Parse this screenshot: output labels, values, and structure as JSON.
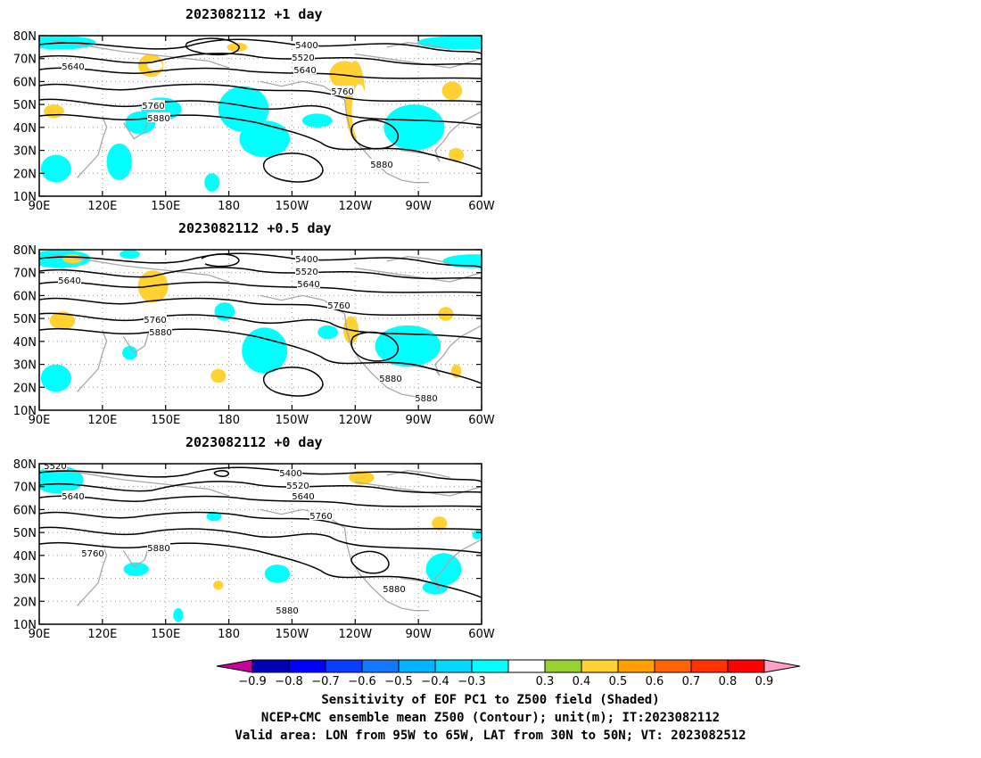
{
  "panels": [
    {
      "title": "2023082112 +1 day",
      "contour_labels": [
        "5400",
        "5520",
        "5640",
        "5640",
        "5760",
        "5760",
        "5880",
        "5880"
      ],
      "shading": [
        {
          "lon": 100,
          "lat": 77,
          "rx": 14,
          "ry": 3,
          "value": -0.3
        },
        {
          "lon": 143,
          "lat": 67,
          "rx": 5,
          "ry": 5,
          "value": 0.4
        },
        {
          "lon": 145,
          "lat": 67,
          "rx": 3,
          "ry": 2,
          "value": 0.5
        },
        {
          "lon": 184,
          "lat": 75,
          "rx": 4,
          "ry": 2,
          "value": 0.4
        },
        {
          "lon": 97,
          "lat": 47,
          "rx": 4,
          "ry": 3,
          "value": 0.4
        },
        {
          "lon": 138,
          "lat": 42,
          "rx": 6,
          "ry": 5,
          "value": -0.3
        },
        {
          "lon": 148,
          "lat": 48,
          "rx": 8,
          "ry": 5,
          "value": -0.3
        },
        {
          "lon": 98,
          "lat": 22,
          "rx": 6,
          "ry": 6,
          "value": -0.3
        },
        {
          "lon": 128,
          "lat": 25,
          "rx": 5,
          "ry": 8,
          "value": -0.3
        },
        {
          "lon": 187,
          "lat": 48,
          "rx": 10,
          "ry": 10,
          "value": -0.3
        },
        {
          "lon": 197,
          "lat": 35,
          "rx": 10,
          "ry": 8,
          "value": -0.3
        },
        {
          "lon": 172,
          "lat": 16,
          "rx": 3,
          "ry": 4,
          "value": -0.3
        },
        {
          "lon": 222,
          "lat": 43,
          "rx": 6,
          "ry": 3,
          "value": -0.3
        },
        {
          "lon": 240,
          "lat": 52,
          "rx": 4,
          "ry": 17,
          "value": 0.4
        },
        {
          "lon": 235,
          "lat": 63,
          "rx": 6,
          "ry": 6,
          "value": 0.4
        },
        {
          "lon": 242,
          "lat": 47,
          "rx": 3,
          "ry": 12,
          "value": 0.5
        },
        {
          "lon": 268,
          "lat": 40,
          "rx": 12,
          "ry": 10,
          "value": -0.3
        },
        {
          "lon": 286,
          "lat": 56,
          "rx": 4,
          "ry": 4,
          "value": 0.4
        },
        {
          "lon": 288,
          "lat": 28,
          "rx": 3,
          "ry": 3,
          "value": 0.4
        },
        {
          "lon": 291,
          "lat": 77,
          "rx": 18,
          "ry": 3,
          "value": -0.3
        }
      ]
    },
    {
      "title": "2023082112 +0.5 day",
      "contour_labels": [
        "5400",
        "5520",
        "5640",
        "5640",
        "5760",
        "5760",
        "5880",
        "5880",
        "5880"
      ],
      "shading": [
        {
          "lon": 100,
          "lat": 76,
          "rx": 12,
          "ry": 4,
          "value": -0.3
        },
        {
          "lon": 133,
          "lat": 78,
          "rx": 4,
          "ry": 2,
          "value": -0.3
        },
        {
          "lon": 144,
          "lat": 64,
          "rx": 6,
          "ry": 7,
          "value": 0.4
        },
        {
          "lon": 106,
          "lat": 76,
          "rx": 4,
          "ry": 2,
          "value": 0.4
        },
        {
          "lon": 101,
          "lat": 49,
          "rx": 5,
          "ry": 4,
          "value": 0.4
        },
        {
          "lon": 133,
          "lat": 35,
          "rx": 3,
          "ry": 3,
          "value": -0.3
        },
        {
          "lon": 98,
          "lat": 24,
          "rx": 6,
          "ry": 6,
          "value": -0.3
        },
        {
          "lon": 175,
          "lat": 25,
          "rx": 3,
          "ry": 3,
          "value": 0.4
        },
        {
          "lon": 178,
          "lat": 53,
          "rx": 4,
          "ry": 4,
          "value": -0.3
        },
        {
          "lon": 197,
          "lat": 36,
          "rx": 9,
          "ry": 10,
          "value": -0.3
        },
        {
          "lon": 227,
          "lat": 44,
          "rx": 4,
          "ry": 3,
          "value": -0.3
        },
        {
          "lon": 238,
          "lat": 45,
          "rx": 3,
          "ry": 6,
          "value": 0.4
        },
        {
          "lon": 265,
          "lat": 38,
          "rx": 13,
          "ry": 9,
          "value": -0.3
        },
        {
          "lon": 283,
          "lat": 52,
          "rx": 3,
          "ry": 3,
          "value": 0.4
        },
        {
          "lon": 288,
          "lat": 27,
          "rx": 2,
          "ry": 3,
          "value": 0.4
        },
        {
          "lon": 296,
          "lat": 75,
          "rx": 12,
          "ry": 3,
          "value": -0.3
        }
      ]
    },
    {
      "title": "2023082112 +0 day",
      "contour_labels": [
        "5400",
        "5520",
        "5520",
        "5640",
        "5640",
        "5760",
        "5760",
        "5880",
        "5880",
        "5880"
      ],
      "shading": [
        {
          "lon": 99,
          "lat": 73,
          "rx": 10,
          "ry": 6,
          "value": -0.3
        },
        {
          "lon": 136,
          "lat": 34,
          "rx": 5,
          "ry": 3,
          "value": -0.3
        },
        {
          "lon": 173,
          "lat": 57,
          "rx": 3,
          "ry": 2,
          "value": -0.3
        },
        {
          "lon": 175,
          "lat": 27,
          "rx": 2,
          "ry": 2,
          "value": 0.4
        },
        {
          "lon": 203,
          "lat": 32,
          "rx": 5,
          "ry": 4,
          "value": -0.3
        },
        {
          "lon": 156,
          "lat": 14,
          "rx": 2,
          "ry": 3,
          "value": -0.3
        },
        {
          "lon": 243,
          "lat": 74,
          "rx": 5,
          "ry": 3,
          "value": 0.4
        },
        {
          "lon": 280,
          "lat": 54,
          "rx": 3,
          "ry": 3,
          "value": 0.4
        },
        {
          "lon": 282,
          "lat": 34,
          "rx": 7,
          "ry": 7,
          "value": -0.3
        },
        {
          "lon": 278,
          "lat": 26,
          "rx": 5,
          "ry": 3,
          "value": -0.3
        },
        {
          "lon": 298,
          "lat": 49,
          "rx": 2,
          "ry": 2,
          "value": -0.3
        }
      ]
    }
  ],
  "axes": {
    "lat_ticks": [
      "80N",
      "70N",
      "60N",
      "50N",
      "40N",
      "30N",
      "20N",
      "10N"
    ],
    "lon_ticks": [
      "90E",
      "120E",
      "150E",
      "180",
      "150W",
      "120W",
      "90W",
      "60W"
    ]
  },
  "colorbar": {
    "labels": [
      "-0.9",
      "-0.8",
      "-0.7",
      "-0.6",
      "-0.5",
      "-0.4",
      "-0.3",
      "0.3",
      "0.4",
      "0.5",
      "0.6",
      "0.7",
      "0.8",
      "0.9"
    ],
    "colors": [
      "#0000b4",
      "#0000ff",
      "#0a3cff",
      "#1478ff",
      "#00b4ff",
      "#00d8ff",
      "#00ffff",
      "#ffffff",
      "#96d232",
      "#ffd232",
      "#ffa000",
      "#ff6400",
      "#ff3200",
      "#ff0000"
    ],
    "low_color": "#c8009c",
    "high_color": "#ffa0c8"
  },
  "caption": {
    "line1": "Sensitivity of EOF PC1 to Z500 field (Shaded)",
    "line2": "NCEP+CMC ensemble mean Z500 (Contour); unit(m); IT:2023082112",
    "line3": "Valid area: LON from 95W to 65W, LAT from 30N to 50N; VT: 2023082512"
  }
}
